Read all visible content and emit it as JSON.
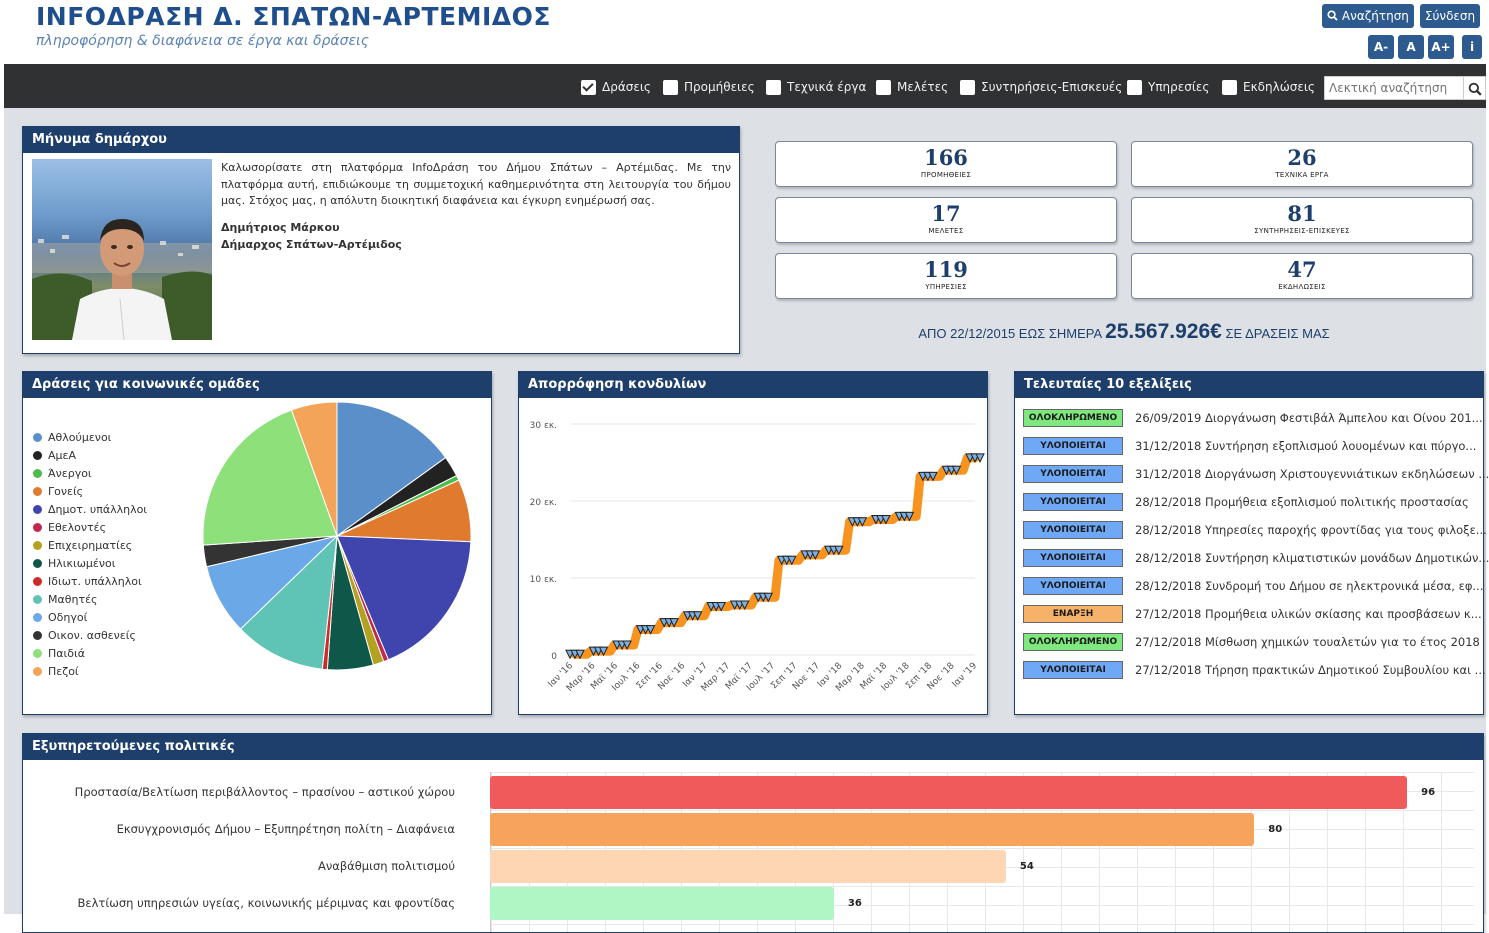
{
  "header": {
    "title": "INFOΔΡΑΣΗ Δ. ΣΠΑΤΩΝ-ΑΡΤΕΜΙΔΟΣ",
    "subtitle": "πληροφόρηση & διαφάνεια σε έργα και δράσεις",
    "search_label": "Αναζήτηση",
    "login_label": "Σύνδεση",
    "font_buttons": [
      "A-",
      "A",
      "A+",
      "i"
    ]
  },
  "filters": [
    {
      "label": "Δράσεις",
      "checked": true
    },
    {
      "label": "Προμήθειες",
      "checked": false
    },
    {
      "label": "Τεχνικά έργα",
      "checked": false
    },
    {
      "label": "Μελέτες",
      "checked": false
    },
    {
      "label": "Συντηρήσεις-Επισκευές",
      "checked": false
    },
    {
      "label": "Υπηρεσίες",
      "checked": false
    },
    {
      "label": "Εκδηλώσεις",
      "checked": false
    }
  ],
  "search_placeholder": "Λεκτική αναζήτηση",
  "mayor": {
    "title": "Μήνυμα δημάρχου",
    "message": "Καλωσορίσατε στη πλατφόρμα InfoΔράση του Δήμου Σπάτων – Αρτέμιδας. Με την πλατφόρμα αυτή, επιδιώκουμε τη συμμετοχική καθημερινότητα στη λειτουργία του δήμου μας. Στόχος μας, η απόλυτη διοικητική διαφάνεια και έγκυρη ενημέρωσή σας.",
    "name": "Δημήτριος Μάρκου",
    "role": "Δήμαρχος Σπάτων-Αρτέμιδος"
  },
  "stats": [
    {
      "value": "166",
      "label": "ΠΡΟΜΗΘΕΙΕΣ"
    },
    {
      "value": "26",
      "label": "ΤΕΧΝΙΚΑ ΕΡΓΑ"
    },
    {
      "value": "17",
      "label": "ΜΕΛΕΤΕΣ"
    },
    {
      "value": "81",
      "label": "ΣΥΝΤΗΡΗΣΕΙΣ-ΕΠΙΣΚΕΥΕΣ"
    },
    {
      "value": "119",
      "label": "ΥΠΗΡΕΣΙΕΣ"
    },
    {
      "value": "47",
      "label": "ΕΚΔΗΛΩΣΕΙΣ"
    }
  ],
  "total": {
    "prefix": "ΑΠΟ 22/12/2015 ΕΩΣ ΣΗΜΕΡΑ",
    "amount": "25.567.926€",
    "suffix": "ΣΕ ΔΡΑΣΕΙΣ ΜΑΣ"
  },
  "pie_panel_title": "Δράσεις για κοινωνικές ομάδες",
  "line_panel_title": "Απορρόφηση κονδυλίων",
  "updates_panel_title": "Τελευταίες 10 εξελίξεις",
  "policies_panel_title": "Εξυπηρετούμενες πολιτικές",
  "chart_data": [
    {
      "type": "pie",
      "title": "",
      "legend_position": "left",
      "slices": [
        {
          "label": "Αθλούμενοι",
          "value": 15,
          "color": "#5b8fc9"
        },
        {
          "label": "ΑμεΑ",
          "value": 2.5,
          "color": "#222222"
        },
        {
          "label": "Άνεργοι",
          "value": 0.6,
          "color": "#4cbb4c"
        },
        {
          "label": "Γονείς",
          "value": 7.5,
          "color": "#e07a2e"
        },
        {
          "label": "Δημοτ. υπάλληλοι",
          "value": 18,
          "color": "#3f45ad"
        },
        {
          "label": "Εθελοντές",
          "value": 0.6,
          "color": "#c0294f"
        },
        {
          "label": "Επιχειρηματίες",
          "value": 1.3,
          "color": "#b3a121"
        },
        {
          "label": "Ηλικιωμένοι",
          "value": 5.5,
          "color": "#0f5849"
        },
        {
          "label": "Ιδιωτ. υπάλληλοι",
          "value": 0.6,
          "color": "#cc2b2b"
        },
        {
          "label": "Μαθητές",
          "value": 11,
          "color": "#5fc4b5"
        },
        {
          "label": "Οδηγοί",
          "value": 8.5,
          "color": "#6aa8e8"
        },
        {
          "label": "Οικον. ασθενείς",
          "value": 2.6,
          "color": "#333333"
        },
        {
          "label": "Παιδιά",
          "value": 20.5,
          "color": "#8ee07a"
        },
        {
          "label": "Πεζοί",
          "value": 5.5,
          "color": "#f4a458"
        }
      ]
    },
    {
      "type": "line",
      "title": "",
      "y_ticks": [
        "0",
        "10 εκ.",
        "20 εκ.",
        "30 εκ."
      ],
      "ylim": [
        0,
        30
      ],
      "x_ticks": [
        "Ιαν '16",
        "Μαρ '16",
        "Μαϊ '16",
        "Ιουλ '16",
        "Σεπ '16",
        "Νοε '16",
        "Ιαν '17",
        "Μαρ '17",
        "Μαϊ '17",
        "Ιουλ '17",
        "Σεπ '17",
        "Νοε '17",
        "Ιαν '18",
        "Μαρ '18",
        "Μαϊ '18",
        "Ιουλ '18",
        "Σεπ '18",
        "Νοε '18",
        "Ιαν '19"
      ],
      "series": [
        {
          "values": [
            0.1,
            0.5,
            1.3,
            3.3,
            4.2,
            5.1,
            6.3,
            6.5,
            7.5,
            12.3,
            13,
            13.6,
            17.3,
            17.6,
            18,
            23.2,
            24,
            25.6
          ],
          "color": "#f7931e"
        }
      ]
    },
    {
      "type": "bar",
      "orientation": "horizontal",
      "title": "",
      "categories": [
        "Προστασία/Βελτίωση περιβάλλοντος – πρασίνου – αστικού χώρου",
        "Εκσυγχρονισμός Δήμου – Εξυπηρέτηση πολίτη – Διαφάνεια",
        "Αναβάθμιση πολιτισμού",
        "Βελτίωση υπηρεσιών υγείας, κοινωνικής μέριμνας και φροντίδας"
      ],
      "values": [
        96,
        80,
        54,
        36
      ],
      "colors": [
        "#f05a5a",
        "#f7a35c",
        "#ffd6b3",
        "#aef7c4"
      ],
      "xlim": [
        0,
        103
      ]
    }
  ],
  "updates": [
    {
      "status": "ΟΛΟΚΛΗΡΩΜΕΝΟ",
      "color": "#7ee87e",
      "date": "26/09/2019",
      "text": "Διοργάνωση Φεστιβάλ Άμπελου και Οίνου 201..."
    },
    {
      "status": "ΥΛΟΠΟΙΕΙΤΑΙ",
      "color": "#6fa8f5",
      "date": "31/12/2018",
      "text": "Συντήρηση εξοπλισμού λουομένων και πύργο..."
    },
    {
      "status": "ΥΛΟΠΟΙΕΙΤΑΙ",
      "color": "#6fa8f5",
      "date": "31/12/2018",
      "text": "Διοργάνωση Χριστουγεννιάτικων εκδηλώσεων ..."
    },
    {
      "status": "ΥΛΟΠΟΙΕΙΤΑΙ",
      "color": "#6fa8f5",
      "date": "28/12/2018",
      "text": "Προμήθεια εξοπλισμού πολιτικής προστασίας"
    },
    {
      "status": "ΥΛΟΠΟΙΕΙΤΑΙ",
      "color": "#6fa8f5",
      "date": "28/12/2018",
      "text": "Υπηρεσίες παροχής φροντίδας για τους φιλοξε..."
    },
    {
      "status": "ΥΛΟΠΟΙΕΙΤΑΙ",
      "color": "#6fa8f5",
      "date": "28/12/2018",
      "text": "Συντήρηση κλιματιστικών μονάδων Δημοτικών..."
    },
    {
      "status": "ΥΛΟΠΟΙΕΙΤΑΙ",
      "color": "#6fa8f5",
      "date": "28/12/2018",
      "text": "Συνδρομή του Δήμου σε ηλεκτρονικά μέσα, εφ..."
    },
    {
      "status": "ΕΝΑΡΞΗ",
      "color": "#f7b26a",
      "date": "27/12/2018",
      "text": "Προμήθεια υλικών σκίασης και προσβάσεων κ..."
    },
    {
      "status": "ΟΛΟΚΛΗΡΩΜΕΝΟ",
      "color": "#7ee87e",
      "date": "27/12/2018",
      "text": "Μίσθωση χημικών τουαλετών για το έτος 2018"
    },
    {
      "status": "ΥΛΟΠΟΙΕΙΤΑΙ",
      "color": "#6fa8f5",
      "date": "27/12/2018",
      "text": "Τήρηση πρακτικών Δημοτικού Συμβουλίου και ..."
    }
  ]
}
